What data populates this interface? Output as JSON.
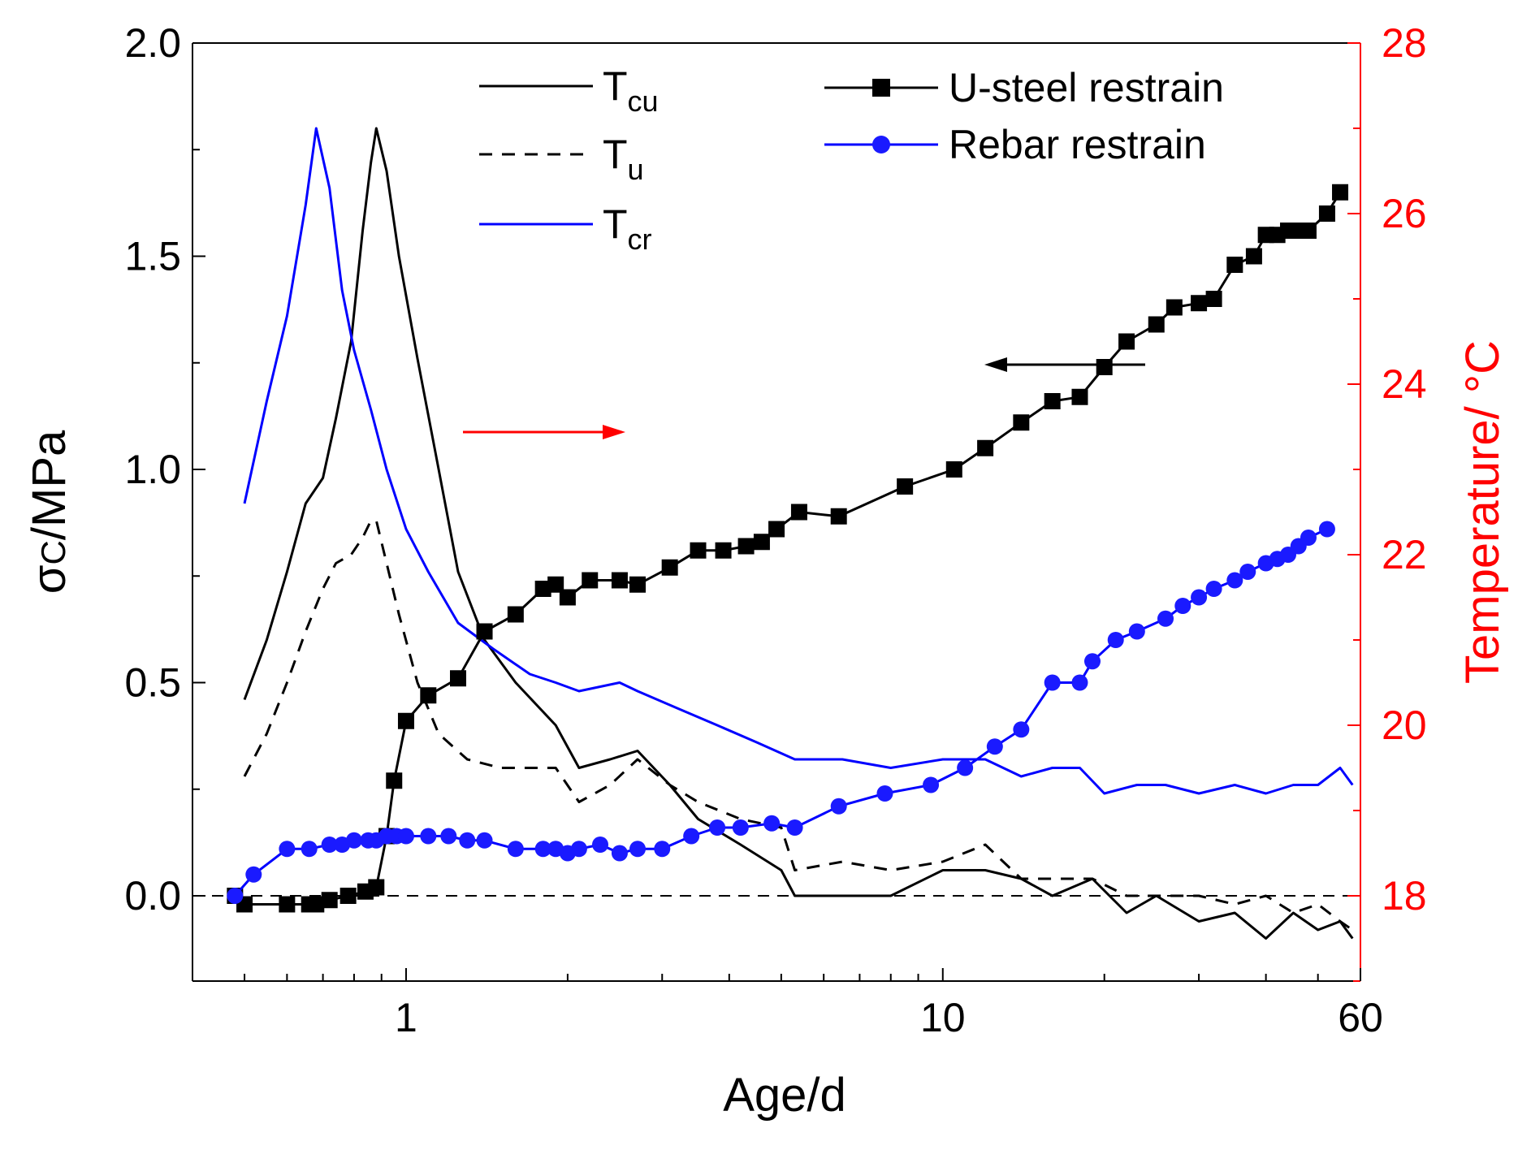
{
  "chart_data": {
    "type": "line",
    "title": "",
    "xlabel": "Age/d",
    "ylabel_main": "σ",
    "ylabel_sub": "C",
    "ylabel_unit": "/MPa",
    "y2label": "Temperature/ °C",
    "x_scale": "log",
    "xlim": [
      0.4,
      60
    ],
    "ylim": [
      -0.2,
      2.0
    ],
    "y2lim": [
      17,
      28
    ],
    "x_ticks": [
      1,
      10,
      60
    ],
    "x_tick_labels": [
      "1",
      "10",
      "60"
    ],
    "y_ticks": [
      0.0,
      0.5,
      1.0,
      1.5,
      2.0
    ],
    "y_tick_labels": [
      "0.0",
      "0.5",
      "1.0",
      "1.5",
      "2.0"
    ],
    "y2_ticks": [
      18,
      20,
      22,
      24,
      26,
      28
    ],
    "y2_tick_labels": [
      "18",
      "20",
      "22",
      "24",
      "26",
      "28"
    ],
    "colors": {
      "black": "#000000",
      "blue": "#0000ff",
      "red": "#ff0000",
      "marker_blue": "#1a1aff"
    },
    "annotations": [
      {
        "type": "arrow",
        "direction": "left",
        "meaning": "refers to left axis",
        "color": "#000000"
      },
      {
        "type": "arrow",
        "direction": "right",
        "meaning": "refers to right axis",
        "color": "#ff0000"
      }
    ],
    "series": [
      {
        "name": "T",
        "sub": "cu",
        "axis": "right",
        "style": "solid",
        "color": "#000000",
        "marker": "none",
        "x": [
          0.5,
          0.55,
          0.6,
          0.65,
          0.7,
          0.74,
          0.79,
          0.83,
          0.86,
          0.88,
          0.92,
          0.97,
          1.05,
          1.15,
          1.25,
          1.4,
          1.6,
          1.9,
          2.1,
          2.4,
          2.7,
          3.1,
          3.5,
          4.2,
          5.0,
          5.3,
          6.5,
          8,
          10,
          12,
          14,
          16,
          19,
          22,
          25,
          30,
          35,
          40,
          45,
          50,
          55,
          58
        ],
        "y": [
          20.3,
          21.0,
          21.8,
          22.6,
          22.9,
          23.6,
          24.5,
          25.8,
          26.6,
          27.0,
          26.5,
          25.5,
          24.3,
          23.0,
          21.8,
          21.0,
          20.5,
          20.0,
          19.5,
          19.6,
          19.7,
          19.3,
          18.9,
          18.6,
          18.3,
          18.0,
          18.0,
          18.0,
          18.3,
          18.3,
          18.2,
          18.0,
          18.2,
          17.8,
          18.0,
          17.7,
          17.8,
          17.5,
          17.8,
          17.6,
          17.7,
          17.5
        ]
      },
      {
        "name": "T",
        "sub": "u",
        "axis": "right",
        "style": "dashed",
        "color": "#000000",
        "marker": "none",
        "x": [
          0.5,
          0.55,
          0.6,
          0.65,
          0.7,
          0.74,
          0.79,
          0.83,
          0.86,
          0.88,
          0.92,
          0.97,
          1.05,
          1.15,
          1.3,
          1.5,
          1.9,
          2.1,
          2.4,
          2.7,
          3.1,
          3.5,
          4.2,
          5.0,
          5.3,
          6.5,
          8,
          10,
          12,
          14,
          16,
          19,
          22,
          25,
          30,
          35,
          40,
          45,
          50,
          55,
          58
        ],
        "y": [
          19.4,
          19.9,
          20.5,
          21.1,
          21.6,
          21.9,
          22.0,
          22.2,
          22.4,
          22.4,
          21.9,
          21.3,
          20.5,
          19.9,
          19.6,
          19.5,
          19.5,
          19.1,
          19.3,
          19.6,
          19.3,
          19.1,
          18.9,
          18.8,
          18.3,
          18.4,
          18.3,
          18.4,
          18.6,
          18.2,
          18.2,
          18.2,
          18.0,
          18.0,
          18.0,
          17.9,
          18.0,
          17.8,
          17.9,
          17.7,
          17.6
        ]
      },
      {
        "name": "T",
        "sub": "cr",
        "axis": "right",
        "style": "solid",
        "color": "#0000ff",
        "marker": "none",
        "x": [
          0.5,
          0.55,
          0.6,
          0.65,
          0.68,
          0.72,
          0.76,
          0.8,
          0.86,
          0.92,
          1.0,
          1.1,
          1.25,
          1.45,
          1.7,
          1.9,
          2.1,
          2.5,
          2.7,
          3.2,
          3.8,
          4.5,
          5.3,
          6.5,
          8,
          10,
          12,
          14,
          16,
          18,
          20,
          23,
          26,
          30,
          35,
          40,
          45,
          50,
          55,
          58
        ],
        "y": [
          22.6,
          23.8,
          24.8,
          26.1,
          27.0,
          26.3,
          25.1,
          24.4,
          23.7,
          23.0,
          22.3,
          21.8,
          21.2,
          20.9,
          20.6,
          20.5,
          20.4,
          20.5,
          20.4,
          20.2,
          20.0,
          19.8,
          19.6,
          19.6,
          19.5,
          19.6,
          19.6,
          19.4,
          19.5,
          19.5,
          19.2,
          19.3,
          19.3,
          19.2,
          19.3,
          19.2,
          19.3,
          19.3,
          19.5,
          19.3
        ]
      },
      {
        "name": "U-steel restrain",
        "axis": "left",
        "style": "solid",
        "color": "#000000",
        "marker": "square",
        "x": [
          0.48,
          0.5,
          0.6,
          0.66,
          0.68,
          0.72,
          0.78,
          0.84,
          0.88,
          0.92,
          0.95,
          1.0,
          1.1,
          1.25,
          1.4,
          1.6,
          1.8,
          1.9,
          2.0,
          2.2,
          2.5,
          2.7,
          3.1,
          3.5,
          3.9,
          4.3,
          4.6,
          4.9,
          5.4,
          6.4,
          8.5,
          10.5,
          12,
          14,
          16,
          18,
          20,
          22,
          25,
          27,
          30,
          32,
          35,
          38,
          40,
          42,
          44,
          46,
          48,
          52,
          55
        ],
        "y": [
          0.0,
          -0.02,
          -0.02,
          -0.02,
          -0.02,
          -0.01,
          0.0,
          0.01,
          0.02,
          0.14,
          0.27,
          0.41,
          0.47,
          0.51,
          0.62,
          0.66,
          0.72,
          0.73,
          0.7,
          0.74,
          0.74,
          0.73,
          0.77,
          0.81,
          0.81,
          0.82,
          0.83,
          0.86,
          0.9,
          0.89,
          0.96,
          1.0,
          1.05,
          1.11,
          1.16,
          1.17,
          1.24,
          1.3,
          1.34,
          1.38,
          1.39,
          1.4,
          1.48,
          1.5,
          1.55,
          1.55,
          1.56,
          1.56,
          1.56,
          1.6,
          1.65
        ]
      },
      {
        "name": "Rebar restrain",
        "axis": "left",
        "style": "solid",
        "color": "#0000ff",
        "marker": "circle",
        "x": [
          0.48,
          0.52,
          0.6,
          0.66,
          0.72,
          0.76,
          0.8,
          0.85,
          0.88,
          0.92,
          0.96,
          1.0,
          1.1,
          1.2,
          1.3,
          1.4,
          1.6,
          1.8,
          1.9,
          2.0,
          2.1,
          2.3,
          2.5,
          2.7,
          3.0,
          3.4,
          3.8,
          4.2,
          4.8,
          5.3,
          6.4,
          7.8,
          9.5,
          11,
          12.5,
          14,
          16,
          18,
          19,
          21,
          23,
          26,
          28,
          30,
          32,
          35,
          37,
          40,
          42,
          44,
          46,
          48,
          52
        ],
        "y": [
          0.0,
          0.05,
          0.11,
          0.11,
          0.12,
          0.12,
          0.13,
          0.13,
          0.13,
          0.14,
          0.14,
          0.14,
          0.14,
          0.14,
          0.13,
          0.13,
          0.11,
          0.11,
          0.11,
          0.1,
          0.11,
          0.12,
          0.1,
          0.11,
          0.11,
          0.14,
          0.16,
          0.16,
          0.17,
          0.16,
          0.21,
          0.24,
          0.26,
          0.3,
          0.35,
          0.39,
          0.5,
          0.5,
          0.55,
          0.6,
          0.62,
          0.65,
          0.68,
          0.7,
          0.72,
          0.74,
          0.76,
          0.78,
          0.79,
          0.8,
          0.82,
          0.84,
          0.86
        ]
      }
    ],
    "legend": [
      {
        "name": "T",
        "sub": "cu",
        "style": "solid",
        "color": "#000000",
        "marker": "none"
      },
      {
        "name": "T",
        "sub": "u",
        "style": "dashed",
        "color": "#000000",
        "marker": "none"
      },
      {
        "name": "T",
        "sub": "cr",
        "style": "solid",
        "color": "#0000ff",
        "marker": "none"
      },
      {
        "name": "U-steel restrain",
        "style": "solid",
        "color": "#000000",
        "marker": "square"
      },
      {
        "name": "Rebar restrain",
        "style": "solid",
        "color": "#0000ff",
        "marker": "circle"
      }
    ]
  }
}
